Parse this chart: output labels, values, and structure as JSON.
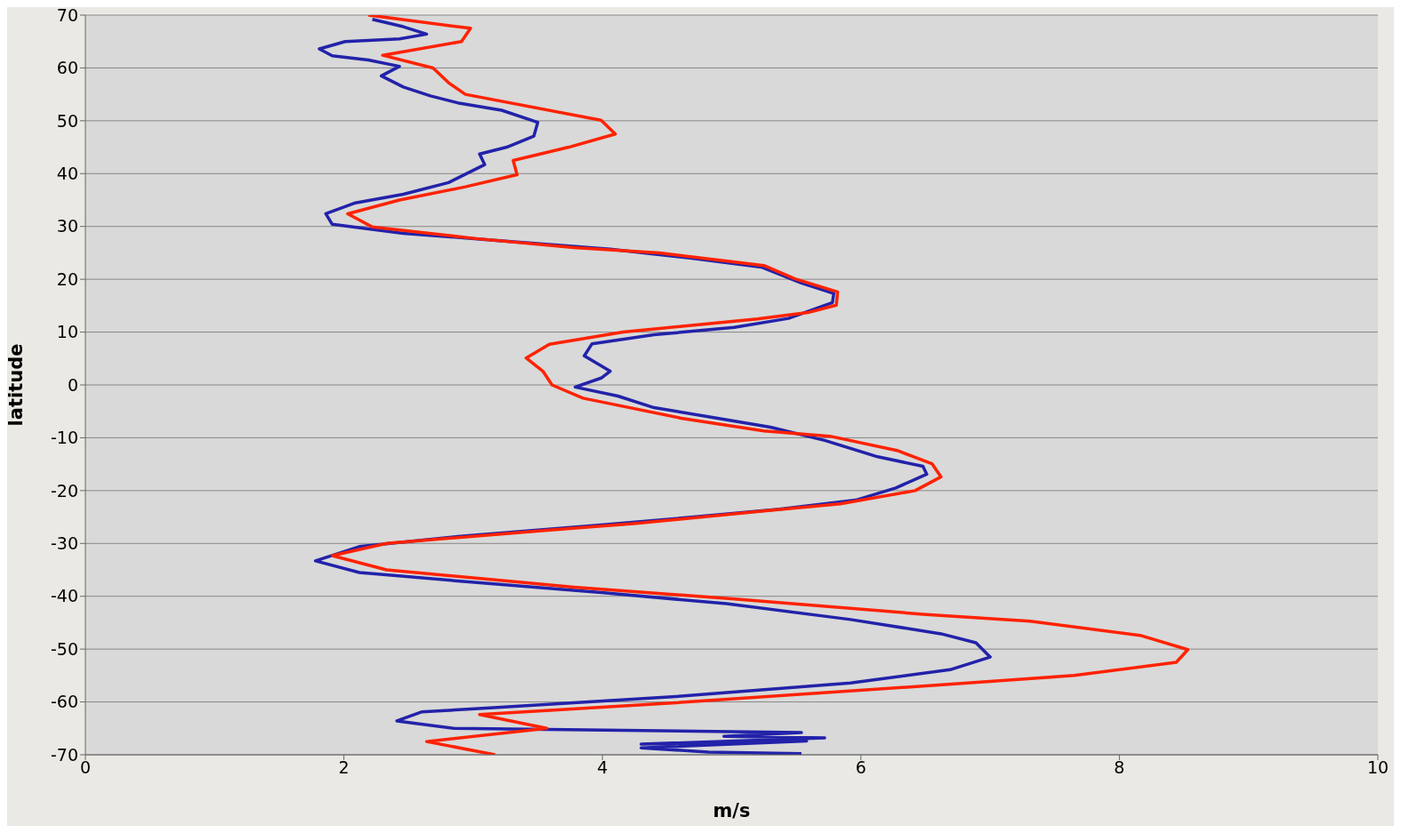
{
  "chart_data": {
    "type": "line",
    "xlabel": "m/s",
    "ylabel": "latitude",
    "xlim": [
      0,
      10
    ],
    "xticks": [
      0,
      2,
      4,
      6,
      8,
      10
    ],
    "ylim": [
      -70,
      70
    ],
    "yticks": [
      -70,
      -60,
      -50,
      -40,
      -30,
      -20,
      -10,
      0,
      10,
      20,
      30,
      40,
      50,
      60,
      70
    ],
    "grid": "y",
    "series": [
      {
        "color": "#2222aa",
        "x": [
          2.22,
          2.46,
          2.64,
          2.43,
          2.01,
          1.81,
          1.91,
          2.19,
          2.43,
          2.29,
          2.46,
          2.67,
          2.88,
          3.22,
          3.5,
          3.47,
          3.26,
          3.05,
          3.09,
          2.81,
          2.46,
          2.08,
          1.86,
          1.91,
          2.46,
          3.16,
          4.06,
          4.68,
          5.23,
          5.54,
          5.79,
          5.78,
          5.44,
          5.02,
          4.4,
          3.92,
          3.86,
          4.06,
          3.99,
          3.79,
          4.12,
          4.4,
          4.82,
          5.3,
          5.72,
          6.13,
          6.48,
          6.51,
          6.27,
          5.96,
          5.37,
          4.61,
          3.99,
          2.88,
          2.12,
          1.78,
          2.12,
          2.88,
          3.99,
          4.96,
          5.92,
          6.62,
          6.89,
          7.0,
          6.69,
          5.92,
          4.61,
          3.16,
          2.6,
          2.41,
          2.85,
          5.54,
          4.94,
          5.72,
          4.3,
          5.58,
          4.3,
          4.82,
          5.54
        ],
        "values": [
          69.2,
          67.8,
          66.4,
          65.5,
          65,
          63.6,
          62.3,
          61.5,
          60.3,
          58.5,
          56.4,
          54.7,
          53.4,
          52,
          49.7,
          47.1,
          45,
          43.7,
          41.7,
          38.3,
          36.1,
          34.4,
          32.4,
          30.4,
          28.7,
          27.4,
          25.7,
          24,
          22.3,
          19.3,
          17.3,
          15.6,
          12.6,
          10.9,
          9.5,
          7.8,
          5.5,
          2.6,
          1.3,
          -0.4,
          -2.1,
          -4.3,
          -6,
          -8,
          -10.5,
          -13.6,
          -15.4,
          -16.9,
          -19.5,
          -21.8,
          -23.5,
          -25.2,
          -26.5,
          -28.7,
          -30.6,
          -33.3,
          -35.5,
          -37.1,
          -39.3,
          -41.4,
          -44.4,
          -47.1,
          -48.8,
          -51.5,
          -53.9,
          -56.4,
          -58.9,
          -61.1,
          -61.9,
          -63.6,
          -65,
          -65.8,
          -66.5,
          -66.8,
          -68,
          -67.4,
          -68.7,
          -69.5,
          -69.8
        ]
      },
      {
        "color": "#ff2200",
        "x": [
          2.19,
          2.98,
          2.91,
          2.3,
          2.69,
          2.81,
          2.94,
          3.99,
          4.1,
          3.74,
          3.31,
          3.34,
          2.94,
          2.43,
          2.03,
          2.22,
          3.02,
          3.78,
          4.44,
          5.25,
          5.49,
          5.82,
          5.81,
          5.59,
          5.2,
          4.16,
          3.59,
          3.41,
          3.54,
          3.61,
          3.85,
          4.61,
          5.25,
          5.76,
          6.28,
          6.55,
          6.62,
          6.42,
          5.84,
          5.23,
          4.26,
          3.57,
          2.33,
          1.91,
          2.33,
          3.78,
          5.02,
          6.48,
          7.31,
          8.16,
          8.53,
          8.44,
          7.65,
          6.48,
          4.54,
          3.05,
          3.57,
          2.64,
          3.17
        ],
        "values": [
          70,
          67.5,
          65,
          62.4,
          60,
          57.2,
          55,
          50.1,
          47.5,
          45,
          42.5,
          39.8,
          37.5,
          35,
          32.4,
          29.9,
          27.7,
          26,
          25,
          22.6,
          20.1,
          17.6,
          15.1,
          13.7,
          12.5,
          10,
          7.7,
          5.1,
          2.6,
          0,
          -2.5,
          -6.3,
          -8.7,
          -9.7,
          -12.4,
          -14.9,
          -17.4,
          -20,
          -22.5,
          -23.9,
          -26.2,
          -27.5,
          -30,
          -32.3,
          -35,
          -38.3,
          -40.5,
          -43.4,
          -44.7,
          -47.4,
          -50.1,
          -52.5,
          -55,
          -57,
          -60.2,
          -62.4,
          -65,
          -67.5,
          -70
        ]
      }
    ]
  }
}
